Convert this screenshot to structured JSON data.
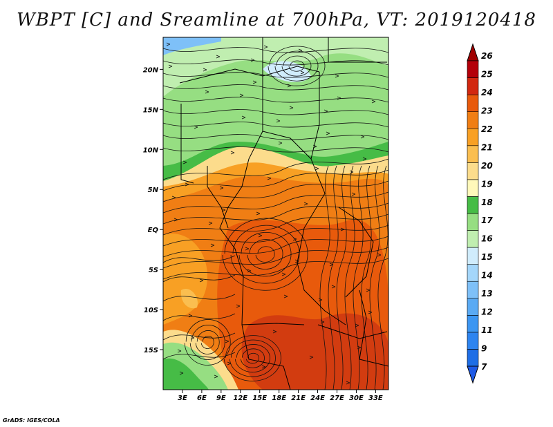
{
  "title": "WBPT [C] and Sreamline at 700hPa, VT: 2019120418",
  "credit": "GrADS: IGES/COLA",
  "map": {
    "lon_range": [
      0,
      35
    ],
    "lat_range": [
      -20,
      24
    ],
    "lat_ticks": [
      {
        "value": 20,
        "label": "20N"
      },
      {
        "value": 15,
        "label": "15N"
      },
      {
        "value": 10,
        "label": "10N"
      },
      {
        "value": 5,
        "label": "5N"
      },
      {
        "value": 0,
        "label": "EQ"
      },
      {
        "value": -5,
        "label": "5S"
      },
      {
        "value": -10,
        "label": "10S"
      },
      {
        "value": -15,
        "label": "15S"
      }
    ],
    "lon_ticks": [
      {
        "value": 3,
        "label": "3E"
      },
      {
        "value": 6,
        "label": "6E"
      },
      {
        "value": 9,
        "label": "9E"
      },
      {
        "value": 12,
        "label": "12E"
      },
      {
        "value": 15,
        "label": "15E"
      },
      {
        "value": 18,
        "label": "18E"
      },
      {
        "value": 21,
        "label": "21E"
      },
      {
        "value": 24,
        "label": "24E"
      },
      {
        "value": 27,
        "label": "27E"
      },
      {
        "value": 30,
        "label": "30E"
      },
      {
        "value": 33,
        "label": "33E"
      }
    ]
  },
  "colorbar": {
    "labels": [
      "7",
      "9",
      "11",
      "12",
      "13",
      "14",
      "15",
      "16",
      "17",
      "18",
      "19",
      "20",
      "21",
      "22",
      "23",
      "24",
      "25",
      "26"
    ],
    "colors": [
      "#1e6ee6",
      "#2d84f0",
      "#3c96f2",
      "#5aaaf4",
      "#7ec0f8",
      "#a4d6fa",
      "#d0ecfc",
      "#c0eeb0",
      "#96de82",
      "#46bc46",
      "#fff8ba",
      "#fcdc8c",
      "#fabe50",
      "#f8a024",
      "#f07e14",
      "#e85a0c",
      "#d22810",
      "#b4000a"
    ],
    "top_arrow_color": "#a00000",
    "bottom_arrow_color": "#1e5ae6"
  }
}
